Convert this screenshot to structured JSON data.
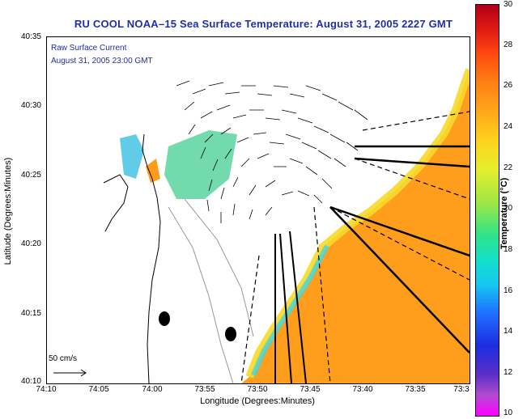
{
  "title": "RU COOL  NOAA–15  Sea Surface Temperature:  August 31, 2005 2227 GMT",
  "current_label": "Raw Surface Current",
  "current_time": "August 31, 2005 23:00 GMT",
  "scale_label": "50 cm/s",
  "xlabel": "Longitude (Degrees:Minutes)",
  "ylabel": "Latitude (Degrees:Minutes)",
  "x_ticks": [
    "74:10",
    "74:05",
    "74:00",
    "73:55",
    "73:50",
    "73:45",
    "73:40",
    "73:35",
    "73:3"
  ],
  "y_ticks": [
    "40:35",
    "40:30",
    "40:25",
    "40:20",
    "40:15",
    "40:10"
  ],
  "colorbar": {
    "label": "Temperature (°C)",
    "ticks": [
      "30",
      "28",
      "26",
      "24",
      "22",
      "20",
      "18",
      "16",
      "14",
      "12",
      "10"
    ],
    "range": [
      10,
      30
    ]
  },
  "colors": {
    "title": "#1f2fa8",
    "land_line": "#000000",
    "sst_warm": "#ff9c1a"
  }
}
